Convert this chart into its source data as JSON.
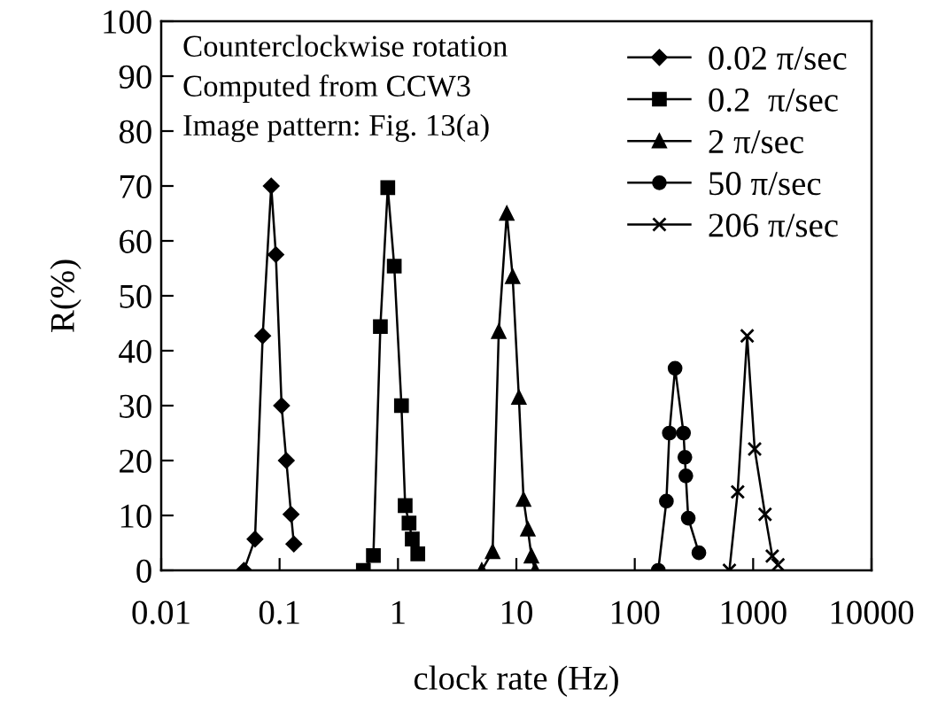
{
  "chart_data": {
    "type": "line",
    "xlabel": "clock rate (Hz)",
    "ylabel": "R(%)",
    "log": "x",
    "xlim": [
      0.01,
      10000
    ],
    "xticks": [
      0.01,
      0.1,
      1,
      10,
      100,
      1000,
      10000
    ],
    "ylim": [
      0,
      100
    ],
    "yticks": [
      0,
      10,
      20,
      30,
      40,
      50,
      60,
      70,
      80,
      90,
      100
    ],
    "grid": false,
    "legend": "top right",
    "annotations": [
      "Counterclockwise rotation",
      "Computed from CCW3",
      "Image pattern: Fig. 13(a)"
    ],
    "series": [
      {
        "name": "0.02 π/sec",
        "color": "#000000",
        "marker": "diamond",
        "x": [
          0.05,
          0.062,
          0.072,
          0.085,
          0.093,
          0.104,
          0.114,
          0.125,
          0.132
        ],
        "values": [
          0,
          5.7,
          42.7,
          70,
          57.5,
          30,
          20,
          10.2,
          4.8
        ]
      },
      {
        "name": "0.2  π/sec",
        "color": "#000000",
        "marker": "square",
        "x": [
          0.51,
          0.62,
          0.71,
          0.82,
          0.93,
          1.07,
          1.15,
          1.24,
          1.32,
          1.47
        ],
        "values": [
          0,
          2.7,
          44.4,
          69.7,
          55.4,
          30,
          11.8,
          8.6,
          5.7,
          3
        ]
      },
      {
        "name": "2 π/sec",
        "color": "#000000",
        "marker": "triangle",
        "x": [
          5.1,
          6.3,
          7.1,
          8.3,
          9.3,
          10.5,
          11.5,
          12.5,
          13.4,
          14.4
        ],
        "values": [
          0,
          3.4,
          43.5,
          65,
          53.5,
          31.5,
          12.9,
          7.5,
          2.6,
          0
        ]
      },
      {
        "name": "50 π/sec",
        "color": "#000000",
        "marker": "circle",
        "x": [
          158,
          185,
          196,
          219,
          258,
          265,
          270,
          283,
          348
        ],
        "values": [
          0,
          12.6,
          25,
          36.8,
          25,
          20.6,
          17.2,
          9.5,
          3.2
        ]
      },
      {
        "name": "206 π/sec",
        "color": "#000000",
        "marker": "cross",
        "x": [
          630,
          740,
          890,
          1030,
          1260,
          1450,
          1620
        ],
        "values": [
          0,
          14.3,
          42.7,
          22.1,
          10.2,
          2.6,
          1
        ]
      }
    ]
  }
}
